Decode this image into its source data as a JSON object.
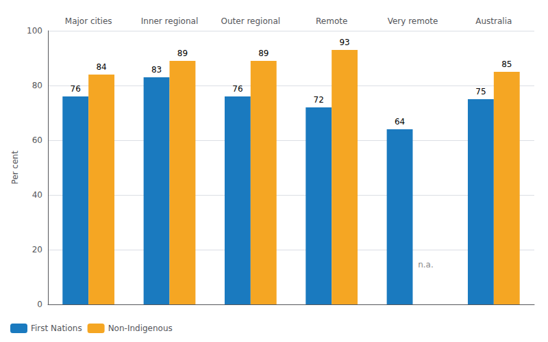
{
  "chart_data": {
    "type": "bar",
    "categories": [
      "Major cities",
      "Inner regional",
      "Outer regional",
      "Remote",
      "Very remote",
      "Australia"
    ],
    "series": [
      {
        "name": "First Nations",
        "color": "#1a7abf",
        "values": [
          76,
          83,
          76,
          72,
          64,
          75
        ]
      },
      {
        "name": "Non-Indigenous",
        "color": "#f5a623",
        "values": [
          84,
          89,
          89,
          93,
          null,
          85
        ]
      }
    ],
    "ylabel": "Per cent",
    "ylim": [
      0,
      100
    ],
    "yticks": [
      0,
      20,
      40,
      60,
      80,
      100
    ],
    "grid": true,
    "legend": "lower left",
    "data_labels": true,
    "annotations": [
      {
        "text": "n.a.",
        "x": "Very remote",
        "series": "Non-Indigenous",
        "y": 13,
        "color": "#888888"
      }
    ]
  }
}
